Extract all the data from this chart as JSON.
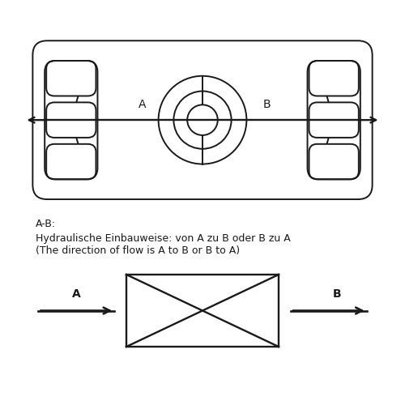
{
  "bg_color": "#ffffff",
  "line_color": "#1a1a1a",
  "label_A": "A",
  "label_B": "B",
  "text_line1": "A-B:",
  "text_line2": "Hydraulische Einbauweise: von A zu B oder B zu A",
  "text_line3": "(The direction of flow is A to B or B to A)",
  "font_size_label": 10,
  "font_size_text": 9,
  "fig_width": 5.0,
  "fig_height": 5.0,
  "dpi": 100
}
